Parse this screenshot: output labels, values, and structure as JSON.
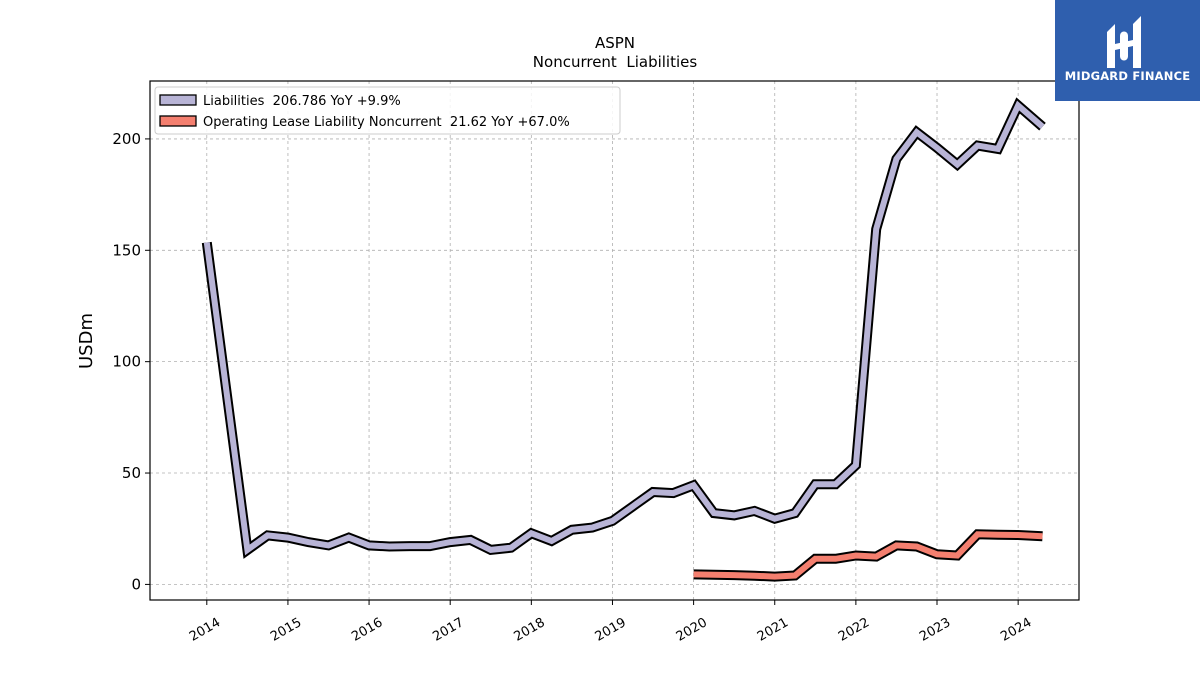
{
  "brand": {
    "name": "MIDGARD FINANCE",
    "color": "#2f5fae"
  },
  "chart_data": {
    "type": "line",
    "title": "ASPN",
    "subtitle": "Noncurrent  Liabilities",
    "xlabel": "",
    "ylabel": "USDm",
    "ylim": [
      -7,
      226
    ],
    "xlim": [
      2013.3,
      2024.75
    ],
    "yticks": [
      0,
      50,
      100,
      150,
      200
    ],
    "xticks": [
      2014,
      2015,
      2016,
      2017,
      2018,
      2019,
      2020,
      2021,
      2022,
      2023,
      2024
    ],
    "xtick_labels": [
      "2014",
      "2015",
      "2016",
      "2017",
      "2018",
      "2019",
      "2020",
      "2021",
      "2022",
      "2023",
      "2024"
    ],
    "grid": true,
    "legend_position": "top-left",
    "series": [
      {
        "name": "Liabilities",
        "legend_label": "Liabilities  206.786 YoY +9.9%",
        "color": "#b8b4d6",
        "points": [
          [
            2014.0,
            153.5
          ],
          [
            2014.5,
            15.5
          ],
          [
            2014.75,
            22.0
          ],
          [
            2015.0,
            21.0
          ],
          [
            2015.25,
            19.0
          ],
          [
            2015.5,
            17.5
          ],
          [
            2015.75,
            21.0
          ],
          [
            2016.0,
            17.5
          ],
          [
            2016.25,
            17.0
          ],
          [
            2016.5,
            17.2
          ],
          [
            2016.75,
            17.2
          ],
          [
            2017.0,
            19.0
          ],
          [
            2017.25,
            20.0
          ],
          [
            2017.5,
            15.5
          ],
          [
            2017.75,
            16.5
          ],
          [
            2018.0,
            23.0
          ],
          [
            2018.25,
            19.5
          ],
          [
            2018.5,
            24.5
          ],
          [
            2018.75,
            25.5
          ],
          [
            2019.0,
            28.5
          ],
          [
            2019.25,
            35.0
          ],
          [
            2019.5,
            41.5
          ],
          [
            2019.75,
            41.0
          ],
          [
            2020.0,
            44.5
          ],
          [
            2020.25,
            32.0
          ],
          [
            2020.5,
            31.0
          ],
          [
            2020.75,
            33.0
          ],
          [
            2021.0,
            29.5
          ],
          [
            2021.25,
            32.0
          ],
          [
            2021.5,
            45.0
          ],
          [
            2021.75,
            45.0
          ],
          [
            2022.0,
            53.5
          ],
          [
            2022.25,
            159.5
          ],
          [
            2022.5,
            191.0
          ],
          [
            2022.75,
            203.0
          ],
          [
            2023.0,
            196.0
          ],
          [
            2023.25,
            188.5
          ],
          [
            2023.5,
            197.0
          ],
          [
            2023.75,
            195.5
          ],
          [
            2024.0,
            215.0
          ],
          [
            2024.3,
            205.5
          ]
        ]
      },
      {
        "name": "Operating Lease Liability Noncurrent",
        "legend_label": "Operating Lease Liability Noncurrent  21.62 YoY +67.0%",
        "color": "#f47f6f",
        "points": [
          [
            2020.0,
            4.5
          ],
          [
            2020.25,
            4.3
          ],
          [
            2020.5,
            4.2
          ],
          [
            2020.75,
            3.9
          ],
          [
            2021.0,
            3.5
          ],
          [
            2021.25,
            4.0
          ],
          [
            2021.5,
            11.5
          ],
          [
            2021.75,
            11.5
          ],
          [
            2022.0,
            13.0
          ],
          [
            2022.25,
            12.5
          ],
          [
            2022.5,
            17.5
          ],
          [
            2022.75,
            17.0
          ],
          [
            2023.0,
            13.5
          ],
          [
            2023.25,
            13.0
          ],
          [
            2023.5,
            22.5
          ],
          [
            2023.75,
            22.3
          ],
          [
            2024.0,
            22.2
          ],
          [
            2024.3,
            21.6
          ]
        ]
      }
    ]
  }
}
